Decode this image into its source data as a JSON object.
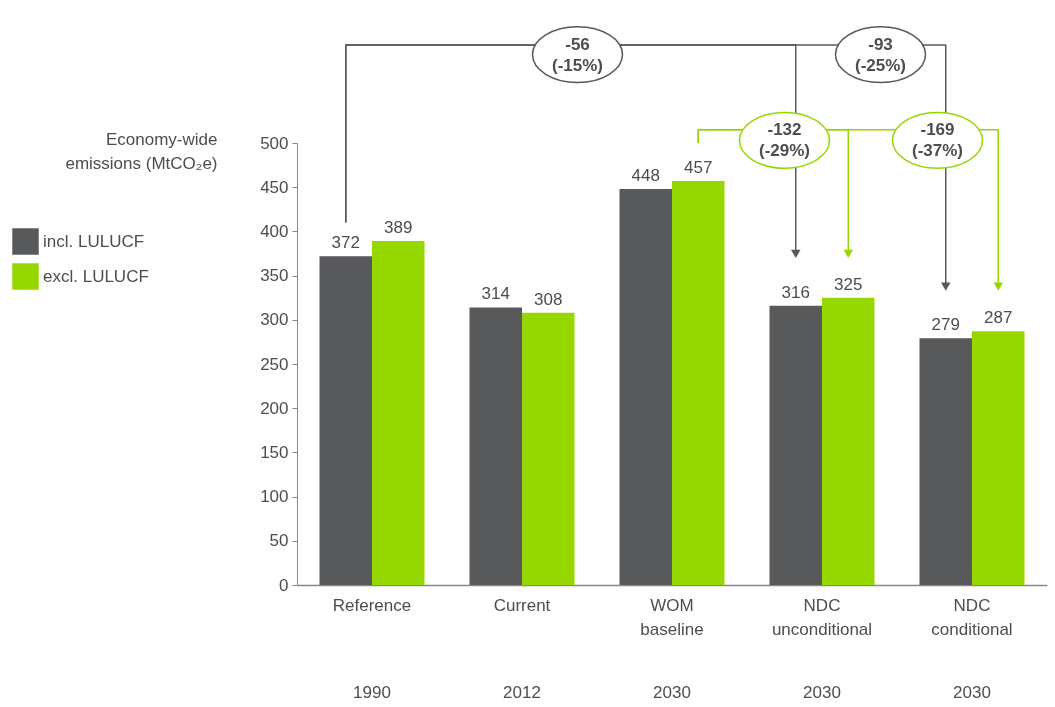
{
  "chart_data": {
    "type": "bar",
    "ylabel": "Economy-wide emissions (MtCO₂e)",
    "categories": [
      "Reference",
      "Current",
      "WOM baseline",
      "NDC unconditional",
      "NDC conditional"
    ],
    "series": [
      {
        "name": "incl. LULUCF",
        "color": "#58595b",
        "values": [
          372,
          314,
          448,
          316,
          279
        ]
      },
      {
        "name": "excl. LULUCF",
        "color": "#97d700",
        "values": [
          389,
          308,
          457,
          325,
          287
        ]
      }
    ],
    "ylim": [
      0,
      500
    ],
    "yticks": [
      0,
      50,
      100,
      150,
      200,
      250,
      300,
      350,
      400,
      450,
      500
    ],
    "data_labels": true,
    "legend": "left",
    "annotations": [
      "-56 (-15%)",
      "-93 (-25%)",
      "-132 (-29%)",
      "-169 (-37%)",
      "1990",
      "2012",
      "2030",
      "2030",
      "2030"
    ]
  }
}
